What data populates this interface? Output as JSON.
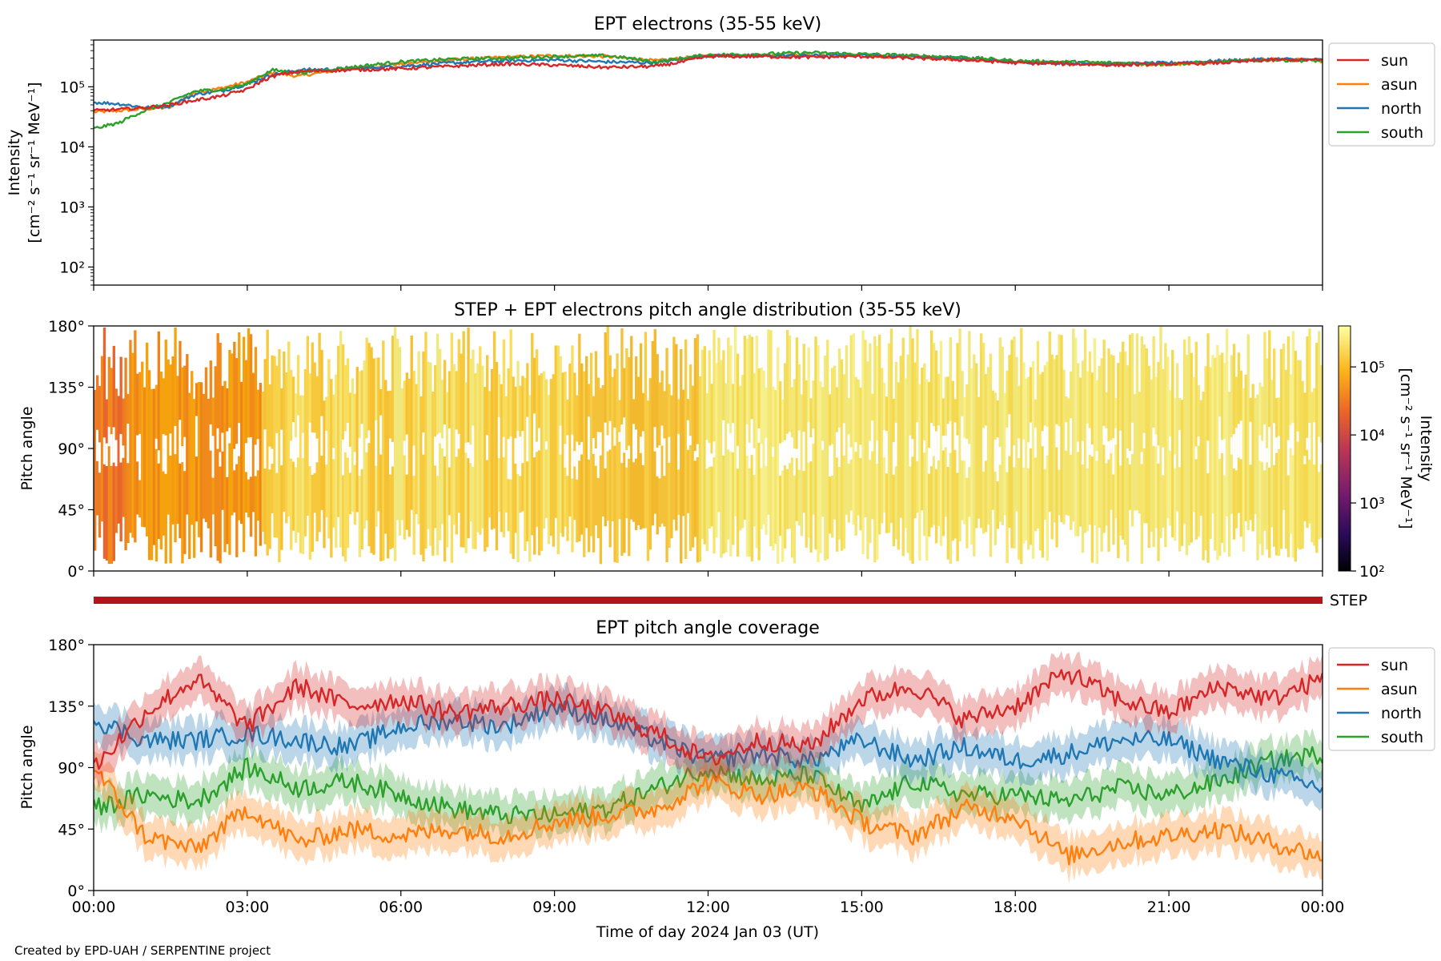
{
  "footer": "Created by EPD-UAH / SERPENTINE project",
  "colors": {
    "sun": "#d62728",
    "asun": "#ff7f0e",
    "north": "#1f77b4",
    "south": "#2ca02c",
    "step_bar": "#b5141b"
  },
  "chart_data": [
    {
      "type": "line",
      "title": "EPT electrons (35-55 keV)",
      "ylabel": "Intensity",
      "yunit": "[cm⁻² s⁻¹ sr⁻¹ MeV⁻¹]",
      "yscale": "log",
      "ylim": [
        50,
        600000
      ],
      "yticks": [
        "10²",
        "10³",
        "10⁴",
        "10⁵"
      ],
      "xlim": [
        "2024-01-03 00:00",
        "2024-01-04 00:00"
      ],
      "legend": [
        "sun",
        "asun",
        "north",
        "south"
      ],
      "legend_position": "outside-right-top",
      "x_hours": [
        0,
        0.5,
        1,
        1.5,
        2,
        2.5,
        3,
        3.5,
        4,
        5,
        6,
        7,
        8,
        9,
        10,
        11,
        11.5,
        12,
        13,
        14,
        15,
        16,
        17,
        18,
        19,
        20,
        21,
        22,
        23,
        24
      ],
      "series": [
        {
          "name": "sun",
          "values": [
            40000,
            42000,
            45000,
            50000,
            60000,
            70000,
            90000,
            150000,
            180000,
            190000,
            200000,
            220000,
            240000,
            230000,
            210000,
            220000,
            260000,
            320000,
            320000,
            310000,
            320000,
            300000,
            280000,
            250000,
            240000,
            230000,
            240000,
            250000,
            280000,
            280000
          ]
        },
        {
          "name": "asun",
          "values": [
            38000,
            40000,
            43000,
            45000,
            80000,
            95000,
            120000,
            170000,
            150000,
            200000,
            240000,
            280000,
            310000,
            330000,
            320000,
            270000,
            300000,
            330000,
            330000,
            340000,
            330000,
            310000,
            290000,
            260000,
            250000,
            240000,
            230000,
            260000,
            290000,
            270000
          ]
        },
        {
          "name": "north",
          "values": [
            55000,
            52000,
            45000,
            48000,
            75000,
            85000,
            110000,
            160000,
            190000,
            200000,
            220000,
            250000,
            270000,
            280000,
            260000,
            250000,
            290000,
            330000,
            330000,
            330000,
            340000,
            320000,
            300000,
            260000,
            250000,
            240000,
            250000,
            270000,
            290000,
            280000
          ]
        },
        {
          "name": "south",
          "values": [
            20000,
            25000,
            40000,
            55000,
            85000,
            90000,
            110000,
            190000,
            170000,
            210000,
            260000,
            290000,
            300000,
            320000,
            330000,
            260000,
            300000,
            340000,
            350000,
            370000,
            350000,
            330000,
            310000,
            270000,
            260000,
            250000,
            240000,
            260000,
            280000,
            270000
          ]
        }
      ]
    },
    {
      "type": "heatmap",
      "title": "STEP + EPT electrons pitch angle distribution (35-55 keV)",
      "ylabel": "Pitch angle",
      "ylim": [
        0,
        180
      ],
      "yticks": [
        "0°",
        "45°",
        "90°",
        "135°",
        "180°"
      ],
      "colorbar_label": "Intensity",
      "colorbar_unit": "[cm⁻² s⁻¹ sr⁻¹ MeV⁻¹]",
      "colorbar_ticks": [
        "10²",
        "10³",
        "10⁴",
        "10⁵"
      ],
      "colorbar_range": [
        100,
        400000
      ],
      "colorbar_scale": "log",
      "colormap": "inferno"
    },
    {
      "type": "bar",
      "label": "STEP"
    },
    {
      "type": "line",
      "title": "EPT pitch angle coverage",
      "ylabel": "Pitch angle",
      "ylim": [
        0,
        180
      ],
      "yticks": [
        "0°",
        "45°",
        "90°",
        "135°",
        "180°"
      ],
      "xlabel": "Time of day 2024 Jan 03 (UT)",
      "xticks": [
        "00:00",
        "03:00",
        "06:00",
        "09:00",
        "12:00",
        "15:00",
        "18:00",
        "21:00",
        "00:00"
      ],
      "xlim": [
        "2024-01-03 00:00",
        "2024-01-04 00:00"
      ],
      "legend": [
        "sun",
        "asun",
        "north",
        "south"
      ],
      "legend_position": "outside-right-top",
      "x_hours": [
        0,
        1,
        2,
        3,
        4,
        5,
        6,
        7,
        8,
        9,
        10,
        11,
        12,
        13,
        14,
        15,
        16,
        17,
        18,
        19,
        20,
        21,
        22,
        23,
        24
      ],
      "series": [
        {
          "name": "sun",
          "values": [
            90,
            130,
            155,
            120,
            150,
            135,
            140,
            130,
            135,
            140,
            130,
            115,
            95,
            110,
            105,
            140,
            150,
            125,
            135,
            160,
            140,
            130,
            150,
            140,
            155
          ]
        },
        {
          "name": "asun",
          "values": [
            90,
            40,
            30,
            60,
            35,
            45,
            40,
            45,
            40,
            50,
            55,
            60,
            80,
            70,
            75,
            50,
            40,
            60,
            55,
            25,
            35,
            40,
            45,
            35,
            25
          ]
        },
        {
          "name": "north",
          "values": [
            125,
            110,
            110,
            115,
            110,
            105,
            120,
            125,
            120,
            135,
            125,
            110,
            95,
            100,
            95,
            110,
            95,
            105,
            95,
            100,
            110,
            110,
            95,
            85,
            75
          ]
        },
        {
          "name": "south",
          "values": [
            60,
            70,
            65,
            90,
            75,
            80,
            70,
            60,
            55,
            55,
            60,
            75,
            90,
            80,
            85,
            60,
            80,
            70,
            70,
            65,
            75,
            70,
            80,
            95,
            100
          ]
        }
      ]
    }
  ]
}
